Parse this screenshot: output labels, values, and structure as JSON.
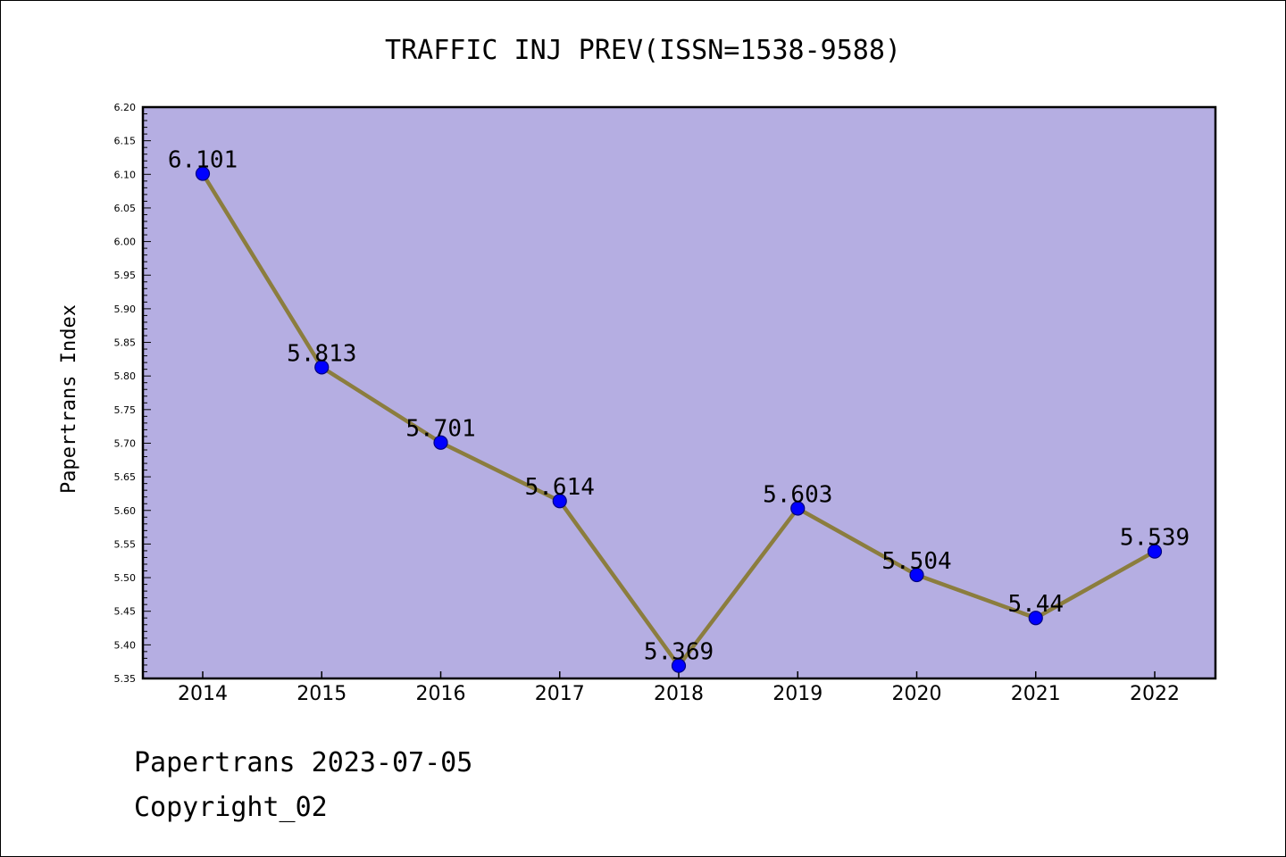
{
  "chart_data": {
    "type": "line",
    "title": "TRAFFIC INJ PREV(ISSN=1538-9588)",
    "xlabel": "",
    "ylabel": "Papertrans Index",
    "categories": [
      "2014",
      "2015",
      "2016",
      "2017",
      "2018",
      "2019",
      "2020",
      "2021",
      "2022"
    ],
    "series": [
      {
        "values": [
          6.101,
          5.813,
          5.701,
          5.614,
          5.369,
          5.603,
          5.504,
          5.44,
          5.539
        ],
        "labels": [
          "6.101",
          "5.813",
          "5.701",
          "5.614",
          "5.369",
          "5.603",
          "5.504",
          "5.44",
          "5.539"
        ]
      }
    ],
    "ylim": [
      5.35,
      6.2
    ],
    "yticks": [
      "5.35",
      "5.40",
      "5.45",
      "5.50",
      "5.55",
      "5.60",
      "5.65",
      "5.70",
      "5.75",
      "5.80",
      "5.85",
      "5.90",
      "5.95",
      "6.00",
      "6.05",
      "6.10",
      "6.15",
      "6.20"
    ],
    "grid": false,
    "legend": "none",
    "colors": {
      "plot_background": "#b5aee2",
      "line": "#8b7d3e",
      "marker_fill": "#0000ff",
      "marker_edge": "#000080"
    }
  },
  "footer": {
    "line1": "Papertrans 2023-07-05",
    "line2": "Copyright_02"
  }
}
